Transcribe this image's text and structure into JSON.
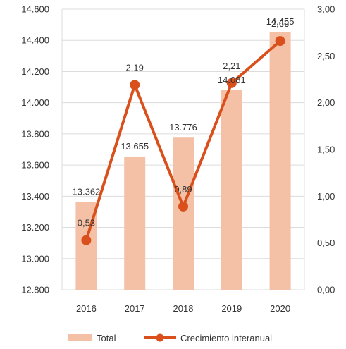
{
  "chart_data": {
    "type": "bar",
    "categories": [
      "2016",
      "2017",
      "2018",
      "2019",
      "2020"
    ],
    "series": [
      {
        "name": "Total",
        "type": "bar",
        "axis": "left",
        "values": [
          13362,
          13655,
          13776,
          14081,
          14455
        ],
        "labels": [
          "13.362",
          "13.655",
          "13.776",
          "14.081",
          "14.455"
        ]
      },
      {
        "name": "Crecimiento interanual",
        "type": "line",
        "axis": "right",
        "values": [
          0.53,
          2.19,
          0.89,
          2.21,
          2.66
        ],
        "labels": [
          "0,53",
          "2,19",
          "0,89",
          "2,21",
          "2,66"
        ]
      }
    ],
    "left_axis": {
      "ylim": [
        12800,
        14600
      ],
      "ticks": [
        12800,
        13000,
        13200,
        13400,
        13600,
        13800,
        14000,
        14200,
        14400,
        14600
      ],
      "tick_labels": [
        "12.800",
        "13.000",
        "13.200",
        "13.400",
        "13.600",
        "13.800",
        "14.000",
        "14.200",
        "14.400",
        "14.600"
      ]
    },
    "right_axis": {
      "ylim": [
        0,
        3
      ],
      "ticks": [
        0,
        0.5,
        1,
        1.5,
        2,
        2.5,
        3
      ],
      "tick_labels": [
        "0,00",
        "0,50",
        "1,00",
        "1,50",
        "2,00",
        "2,50",
        "3,00"
      ]
    },
    "grid": true,
    "legend": "bottom",
    "colors": {
      "bar": "#f4c1a6",
      "line": "#d9501c",
      "grid": "#dcdcdc"
    }
  }
}
